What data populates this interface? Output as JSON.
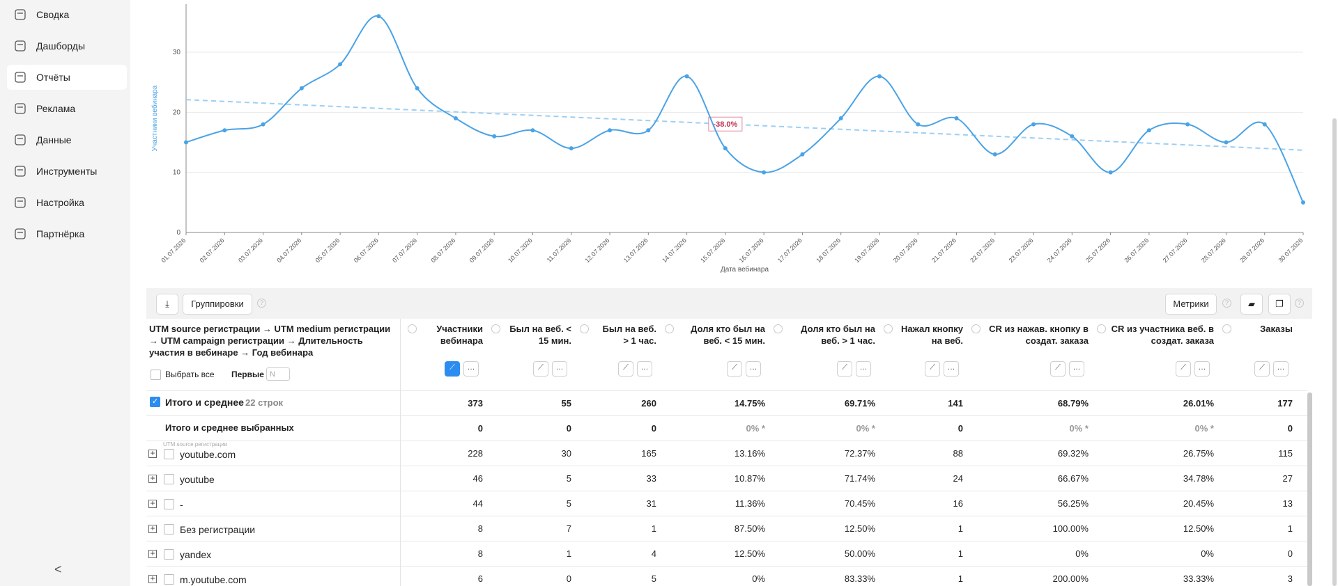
{
  "sidebar": {
    "items": [
      "Сводка",
      "Дашборды",
      "Отчёты",
      "Реклама",
      "Данные",
      "Инструменты",
      "Настройка",
      "Партнёрка"
    ],
    "active": 2
  },
  "chart": {
    "type": "line",
    "y_label": "Участники вебинара",
    "x_label": "Дата вебинара",
    "x": [
      "01.07.2026",
      "02.07.2026",
      "03.07.2026",
      "04.07.2026",
      "05.07.2026",
      "06.07.2026",
      "07.07.2026",
      "08.07.2026",
      "09.07.2026",
      "10.07.2026",
      "11.07.2026",
      "12.07.2026",
      "13.07.2026",
      "14.07.2026",
      "15.07.2026",
      "16.07.2026",
      "17.07.2026",
      "18.07.2026",
      "19.07.2026",
      "20.07.2026",
      "21.07.2026",
      "22.07.2026",
      "23.07.2026",
      "24.07.2026",
      "25.07.2026",
      "26.07.2026",
      "27.07.2026",
      "28.07.2026",
      "29.07.2026",
      "30.07.2026"
    ],
    "series": [
      {
        "name": "Участники вебинара",
        "color": "#4aa3e6",
        "values": [
          15,
          17,
          18,
          24,
          28,
          36,
          24,
          19,
          16,
          17,
          14,
          17,
          17,
          26,
          14,
          10,
          13,
          19,
          26,
          18,
          19,
          13,
          18,
          16,
          10,
          17,
          18,
          15,
          18,
          5
        ]
      }
    ],
    "trendline": true,
    "trend_color": "#9ccff4",
    "annotation": {
      "text": "-38.0%",
      "index": 14
    },
    "ylim": [
      0,
      38
    ],
    "yticks": [
      0,
      10,
      20,
      30
    ],
    "grid": true
  },
  "toolbar": {
    "groupings": "Группировки",
    "metrics": "Метрики"
  },
  "table": {
    "group_header": "UTM source регистрации → UTM medium регистрации → UTM campaign регистрации → Длительность участия в вебинаре → Год вебинара",
    "select_all": "Выбрать все",
    "first": "Первые",
    "first_placeholder": "N",
    "level_label": "UTM source регистрации",
    "columns": [
      "Участники вебинара",
      "Был на веб. < 15 мин.",
      "Был на веб. > 1 час.",
      "Доля кто был на веб. < 15 мин.",
      "Доля кто был на веб. > 1 час.",
      "Нажал кнопку на веб.",
      "CR из нажав. кнопку в создат. заказа",
      "CR из участника веб. в создат. заказа",
      "Заказы"
    ],
    "total": {
      "label": "Итого и среднее",
      "count": "22 строк",
      "values": [
        "373",
        "55",
        "260",
        "14.75%",
        "69.71%",
        "141",
        "68.79%",
        "26.01%",
        "177"
      ]
    },
    "selected_total": {
      "label": "Итого и среднее выбранных",
      "values": [
        "0",
        "0",
        "0",
        "0% *",
        "0% *",
        "0",
        "0% *",
        "0% *",
        "0"
      ]
    },
    "rows": [
      {
        "label": "youtube.com",
        "values": [
          "228",
          "30",
          "165",
          "13.16%",
          "72.37%",
          "88",
          "69.32%",
          "26.75%",
          "115"
        ]
      },
      {
        "label": "youtube",
        "values": [
          "46",
          "5",
          "33",
          "10.87%",
          "71.74%",
          "24",
          "66.67%",
          "34.78%",
          "27"
        ]
      },
      {
        "label": "-",
        "values": [
          "44",
          "5",
          "31",
          "11.36%",
          "70.45%",
          "16",
          "56.25%",
          "20.45%",
          "13"
        ]
      },
      {
        "label": "Без регистрации",
        "values": [
          "8",
          "7",
          "1",
          "87.50%",
          "12.50%",
          "1",
          "100.00%",
          "12.50%",
          "1"
        ]
      },
      {
        "label": "yandex",
        "values": [
          "8",
          "1",
          "4",
          "12.50%",
          "50.00%",
          "1",
          "0%",
          "0%",
          "0"
        ]
      },
      {
        "label": "m.youtube.com",
        "values": [
          "6",
          "0",
          "5",
          "0%",
          "83.33%",
          "1",
          "200.00%",
          "33.33%",
          "3"
        ]
      }
    ]
  }
}
